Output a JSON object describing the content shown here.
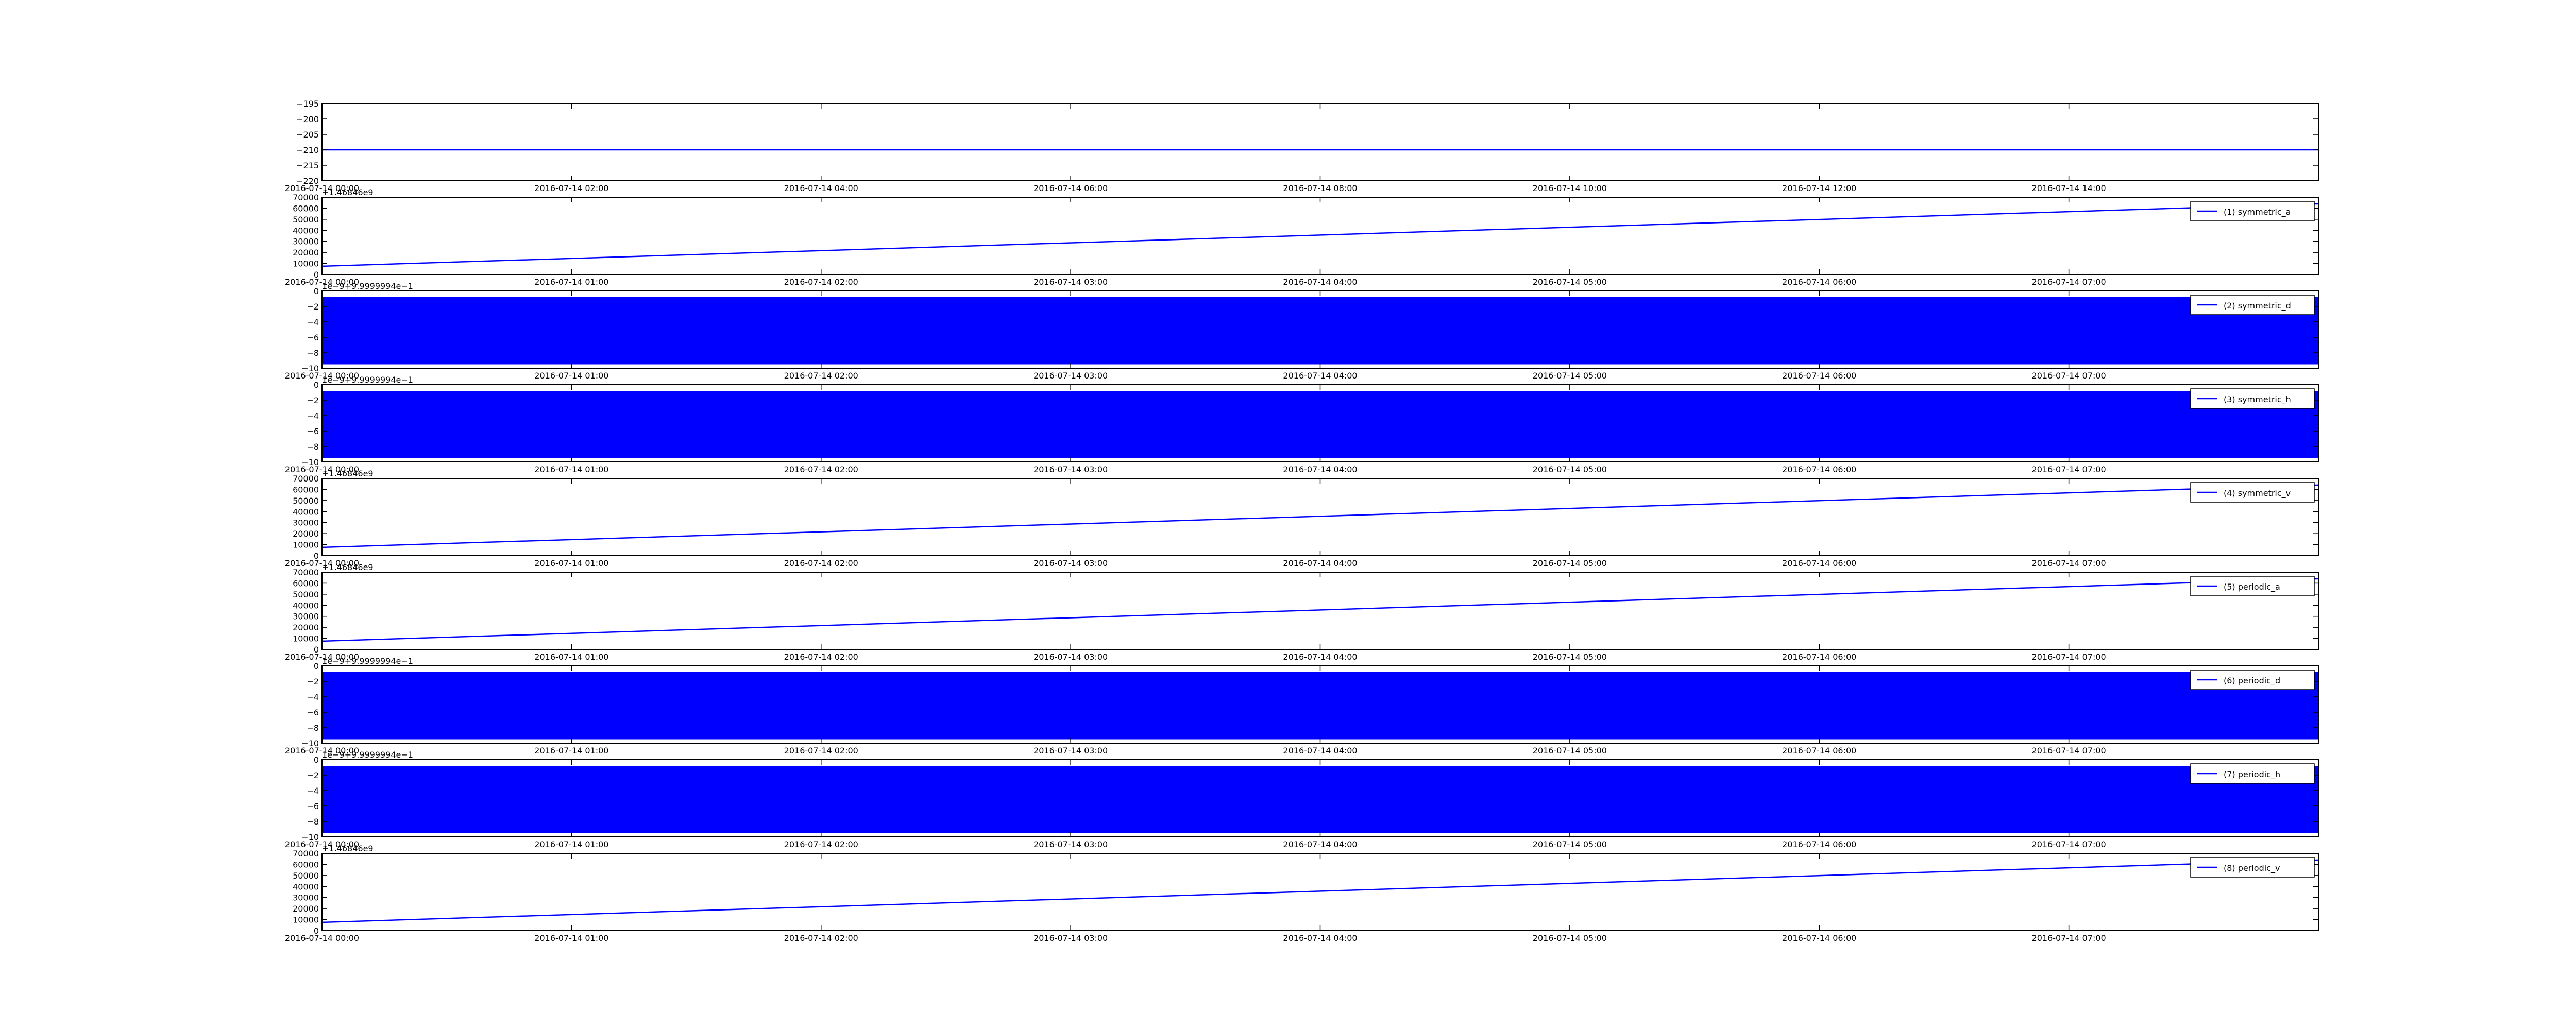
{
  "chart_data": [
    {
      "type": "line",
      "xlim": [
        "2016-07-14 00:00",
        "2016-07-14 16:00"
      ],
      "xticks": [
        "2016-07-14 00:00",
        "2016-07-14 02:00",
        "2016-07-14 04:00",
        "2016-07-14 06:00",
        "2016-07-14 08:00",
        "2016-07-14 10:00",
        "2016-07-14 12:00",
        "2016-07-14 14:00"
      ],
      "ylim": [
        -220,
        -195
      ],
      "yticks": [
        {
          "value": -195,
          "label": "−195"
        },
        {
          "value": -200,
          "label": "−200"
        },
        {
          "value": -205,
          "label": "−205"
        },
        {
          "value": -210,
          "label": "−210"
        },
        {
          "value": -215,
          "label": "−215"
        },
        {
          "value": -220,
          "label": "−220"
        }
      ],
      "series": [
        {
          "color": "#0000ff",
          "x": [
            "2016-07-14 00:00",
            "2016-07-14 16:00"
          ],
          "values": [
            -210,
            -210
          ]
        }
      ]
    },
    {
      "type": "line",
      "offset_text": "+1.46846e9",
      "xlim": [
        "2016-07-14 00:00",
        "2016-07-14 08:00"
      ],
      "xticks": [
        "2016-07-14 00:00",
        "2016-07-14 01:00",
        "2016-07-14 02:00",
        "2016-07-14 03:00",
        "2016-07-14 04:00",
        "2016-07-14 05:00",
        "2016-07-14 06:00",
        "2016-07-14 07:00"
      ],
      "ylim": [
        0,
        70000
      ],
      "yticks": [
        0,
        10000,
        20000,
        30000,
        40000,
        50000,
        60000,
        70000
      ],
      "series": [
        {
          "name": "(1) symmetric_a",
          "color": "#0000ff",
          "x": [
            "2016-07-14 00:00",
            "2016-07-14 08:00"
          ],
          "values": [
            7500,
            64000
          ]
        }
      ]
    },
    {
      "type": "band",
      "offset_text": "1e−9+9.9999994e−1",
      "xlim": [
        "2016-07-14 00:00",
        "2016-07-14 08:00"
      ],
      "xticks": [
        "2016-07-14 00:00",
        "2016-07-14 01:00",
        "2016-07-14 02:00",
        "2016-07-14 03:00",
        "2016-07-14 04:00",
        "2016-07-14 05:00",
        "2016-07-14 06:00",
        "2016-07-14 07:00"
      ],
      "ylim": [
        -10,
        0
      ],
      "yticks": [
        0,
        {
          "value": -2,
          "label": "−2"
        },
        {
          "value": -4,
          "label": "−4"
        },
        {
          "value": -6,
          "label": "−6"
        },
        {
          "value": -8,
          "label": "−8"
        },
        {
          "value": -10,
          "label": "−10"
        }
      ],
      "series": [
        {
          "name": "(2) symmetric_d",
          "color": "#0000ff",
          "x": [
            "2016-07-14 00:00",
            "2016-07-14 08:00"
          ],
          "low": -9.5,
          "high": -0.8
        }
      ]
    },
    {
      "type": "band",
      "offset_text": "1e−9+9.9999994e−1",
      "xlim": [
        "2016-07-14 00:00",
        "2016-07-14 08:00"
      ],
      "xticks": [
        "2016-07-14 00:00",
        "2016-07-14 01:00",
        "2016-07-14 02:00",
        "2016-07-14 03:00",
        "2016-07-14 04:00",
        "2016-07-14 05:00",
        "2016-07-14 06:00",
        "2016-07-14 07:00"
      ],
      "ylim": [
        -10,
        0
      ],
      "yticks": [
        0,
        {
          "value": -2,
          "label": "−2"
        },
        {
          "value": -4,
          "label": "−4"
        },
        {
          "value": -6,
          "label": "−6"
        },
        {
          "value": -8,
          "label": "−8"
        },
        {
          "value": -10,
          "label": "−10"
        }
      ],
      "series": [
        {
          "name": "(3) symmetric_h",
          "color": "#0000ff",
          "x": [
            "2016-07-14 00:00",
            "2016-07-14 08:00"
          ],
          "low": -9.5,
          "high": -0.8
        }
      ]
    },
    {
      "type": "line",
      "offset_text": "+1.46846e9",
      "xlim": [
        "2016-07-14 00:00",
        "2016-07-14 08:00"
      ],
      "xticks": [
        "2016-07-14 00:00",
        "2016-07-14 01:00",
        "2016-07-14 02:00",
        "2016-07-14 03:00",
        "2016-07-14 04:00",
        "2016-07-14 05:00",
        "2016-07-14 06:00",
        "2016-07-14 07:00"
      ],
      "ylim": [
        0,
        70000
      ],
      "yticks": [
        0,
        10000,
        20000,
        30000,
        40000,
        50000,
        60000,
        70000
      ],
      "series": [
        {
          "name": "(4) symmetric_v",
          "color": "#0000ff",
          "x": [
            "2016-07-14 00:00",
            "2016-07-14 08:00"
          ],
          "values": [
            7500,
            64000
          ]
        }
      ]
    },
    {
      "type": "line",
      "offset_text": "+1.46846e9",
      "xlim": [
        "2016-07-14 00:00",
        "2016-07-14 08:00"
      ],
      "xticks": [
        "2016-07-14 00:00",
        "2016-07-14 01:00",
        "2016-07-14 02:00",
        "2016-07-14 03:00",
        "2016-07-14 04:00",
        "2016-07-14 05:00",
        "2016-07-14 06:00",
        "2016-07-14 07:00"
      ],
      "ylim": [
        0,
        70000
      ],
      "yticks": [
        0,
        10000,
        20000,
        30000,
        40000,
        50000,
        60000,
        70000
      ],
      "series": [
        {
          "name": "(5) periodic_a",
          "color": "#0000ff",
          "x": [
            "2016-07-14 00:00",
            "2016-07-14 08:00"
          ],
          "values": [
            7500,
            64000
          ]
        }
      ]
    },
    {
      "type": "band",
      "offset_text": "1e−9+9.9999994e−1",
      "xlim": [
        "2016-07-14 00:00",
        "2016-07-14 08:00"
      ],
      "xticks": [
        "2016-07-14 00:00",
        "2016-07-14 01:00",
        "2016-07-14 02:00",
        "2016-07-14 03:00",
        "2016-07-14 04:00",
        "2016-07-14 05:00",
        "2016-07-14 06:00",
        "2016-07-14 07:00"
      ],
      "ylim": [
        -10,
        0
      ],
      "yticks": [
        0,
        {
          "value": -2,
          "label": "−2"
        },
        {
          "value": -4,
          "label": "−4"
        },
        {
          "value": -6,
          "label": "−6"
        },
        {
          "value": -8,
          "label": "−8"
        },
        {
          "value": -10,
          "label": "−10"
        }
      ],
      "series": [
        {
          "name": "(6) periodic_d",
          "color": "#0000ff",
          "x": [
            "2016-07-14 00:00",
            "2016-07-14 08:00"
          ],
          "low": -9.5,
          "high": -0.8
        }
      ]
    },
    {
      "type": "band",
      "offset_text": "1e−9+9.9999994e−1",
      "xlim": [
        "2016-07-14 00:00",
        "2016-07-14 08:00"
      ],
      "xticks": [
        "2016-07-14 00:00",
        "2016-07-14 01:00",
        "2016-07-14 02:00",
        "2016-07-14 03:00",
        "2016-07-14 04:00",
        "2016-07-14 05:00",
        "2016-07-14 06:00",
        "2016-07-14 07:00"
      ],
      "ylim": [
        -10,
        0
      ],
      "yticks": [
        0,
        {
          "value": -2,
          "label": "−2"
        },
        {
          "value": -4,
          "label": "−4"
        },
        {
          "value": -6,
          "label": "−6"
        },
        {
          "value": -8,
          "label": "−8"
        },
        {
          "value": -10,
          "label": "−10"
        }
      ],
      "series": [
        {
          "name": "(7) periodic_h",
          "color": "#0000ff",
          "x": [
            "2016-07-14 00:00",
            "2016-07-14 08:00"
          ],
          "low": -9.5,
          "high": -0.8
        }
      ]
    },
    {
      "type": "line",
      "offset_text": "+1.46846e9",
      "xlim": [
        "2016-07-14 00:00",
        "2016-07-14 08:00"
      ],
      "xticks": [
        "2016-07-14 00:00",
        "2016-07-14 01:00",
        "2016-07-14 02:00",
        "2016-07-14 03:00",
        "2016-07-14 04:00",
        "2016-07-14 05:00",
        "2016-07-14 06:00",
        "2016-07-14 07:00"
      ],
      "ylim": [
        0,
        70000
      ],
      "yticks": [
        0,
        10000,
        20000,
        30000,
        40000,
        50000,
        60000,
        70000
      ],
      "series": [
        {
          "name": "(8) periodic_v",
          "color": "#0000ff",
          "x": [
            "2016-07-14 00:00",
            "2016-07-14 08:00"
          ],
          "values": [
            7500,
            64000
          ]
        }
      ]
    }
  ]
}
